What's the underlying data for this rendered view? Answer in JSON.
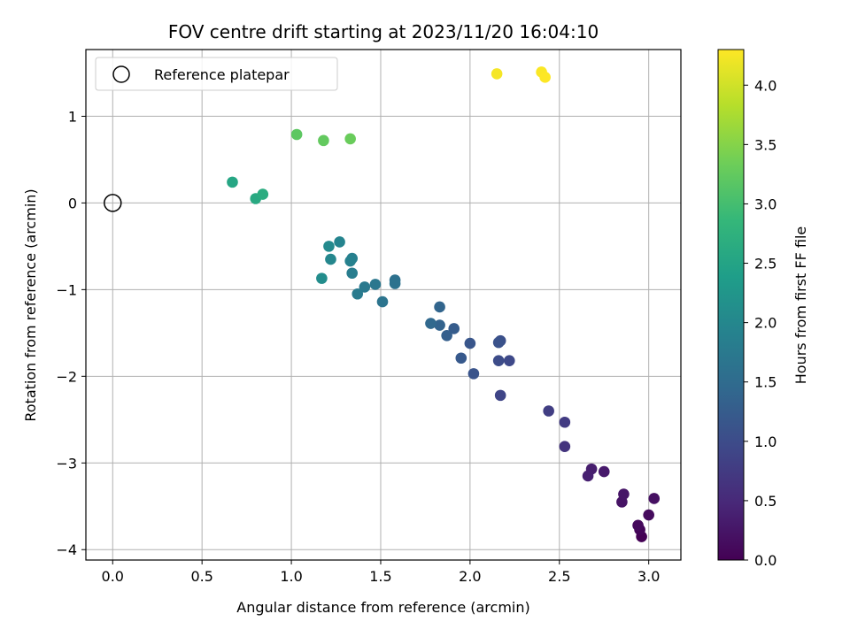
{
  "chart_data": {
    "type": "scatter",
    "title": "FOV centre drift starting at 2023/11/20 16:04:10",
    "xlabel": "Angular distance from reference (arcmin)",
    "ylabel": "Rotation from reference (arcmin)",
    "xlim": [
      -0.15,
      3.18
    ],
    "ylim": [
      -4.12,
      1.77
    ],
    "xticks": [
      0.0,
      0.5,
      1.0,
      1.5,
      2.0,
      2.5,
      3.0
    ],
    "xtick_labels": [
      "0.0",
      "0.5",
      "1.0",
      "1.5",
      "2.0",
      "2.5",
      "3.0"
    ],
    "yticks": [
      -4,
      -3,
      -2,
      -1,
      0,
      1
    ],
    "ytick_labels": [
      "−4",
      "−3",
      "−2",
      "−1",
      "0",
      "1"
    ],
    "grid": true,
    "legend": {
      "location": "upper-left",
      "entries": [
        "Reference platepar"
      ]
    },
    "reference_point": {
      "x": 0.0,
      "y": 0.0
    },
    "colorbar": {
      "label": "Hours from first FF file",
      "range": [
        0.0,
        4.3
      ],
      "ticks": [
        0.0,
        0.5,
        1.0,
        1.5,
        2.0,
        2.5,
        3.0,
        3.5,
        4.0
      ],
      "tick_labels": [
        "0.0",
        "0.5",
        "1.0",
        "1.5",
        "2.0",
        "2.5",
        "3.0",
        "3.5",
        "4.0"
      ],
      "colormap": [
        "#440154",
        "#482878",
        "#3e4989",
        "#31688e",
        "#26828e",
        "#1f9e89",
        "#35b779",
        "#6ece58",
        "#b5de2b",
        "#fde725"
      ]
    },
    "points": [
      {
        "x": 2.96,
        "y": -3.85,
        "c": 0.0
      },
      {
        "x": 2.95,
        "y": -3.77,
        "c": 0.05
      },
      {
        "x": 2.94,
        "y": -3.72,
        "c": 0.1
      },
      {
        "x": 3.0,
        "y": -3.6,
        "c": 0.12
      },
      {
        "x": 3.03,
        "y": -3.41,
        "c": 0.18
      },
      {
        "x": 2.85,
        "y": -3.45,
        "c": 0.22
      },
      {
        "x": 2.86,
        "y": -3.36,
        "c": 0.25
      },
      {
        "x": 2.75,
        "y": -3.1,
        "c": 0.3
      },
      {
        "x": 2.68,
        "y": -3.07,
        "c": 0.35
      },
      {
        "x": 2.66,
        "y": -3.15,
        "c": 0.38
      },
      {
        "x": 2.53,
        "y": -2.81,
        "c": 0.65
      },
      {
        "x": 2.53,
        "y": -2.53,
        "c": 0.75
      },
      {
        "x": 2.44,
        "y": -2.4,
        "c": 0.8
      },
      {
        "x": 2.17,
        "y": -2.22,
        "c": 0.9
      },
      {
        "x": 2.22,
        "y": -1.82,
        "c": 0.95
      },
      {
        "x": 2.16,
        "y": -1.82,
        "c": 1.0
      },
      {
        "x": 2.17,
        "y": -1.59,
        "c": 1.05
      },
      {
        "x": 2.16,
        "y": -1.61,
        "c": 1.1
      },
      {
        "x": 2.02,
        "y": -1.97,
        "c": 1.12
      },
      {
        "x": 2.0,
        "y": -1.62,
        "c": 1.15
      },
      {
        "x": 1.95,
        "y": -1.79,
        "c": 1.2
      },
      {
        "x": 1.91,
        "y": -1.45,
        "c": 1.25
      },
      {
        "x": 1.87,
        "y": -1.53,
        "c": 1.3
      },
      {
        "x": 1.83,
        "y": -1.41,
        "c": 1.35
      },
      {
        "x": 1.83,
        "y": -1.2,
        "c": 1.38
      },
      {
        "x": 1.78,
        "y": -1.39,
        "c": 1.45
      },
      {
        "x": 1.58,
        "y": -0.89,
        "c": 1.6
      },
      {
        "x": 1.58,
        "y": -0.93,
        "c": 1.62
      },
      {
        "x": 1.51,
        "y": -1.14,
        "c": 1.65
      },
      {
        "x": 1.47,
        "y": -0.94,
        "c": 1.7
      },
      {
        "x": 1.41,
        "y": -0.97,
        "c": 1.75
      },
      {
        "x": 1.37,
        "y": -1.05,
        "c": 1.78
      },
      {
        "x": 1.34,
        "y": -0.81,
        "c": 1.82
      },
      {
        "x": 1.34,
        "y": -0.64,
        "c": 1.85
      },
      {
        "x": 1.33,
        "y": -0.67,
        "c": 1.9
      },
      {
        "x": 1.27,
        "y": -0.45,
        "c": 1.95
      },
      {
        "x": 1.22,
        "y": -0.65,
        "c": 2.0
      },
      {
        "x": 1.21,
        "y": -0.5,
        "c": 2.05
      },
      {
        "x": 1.17,
        "y": -0.87,
        "c": 2.1
      },
      {
        "x": 0.67,
        "y": 0.24,
        "c": 2.55
      },
      {
        "x": 0.8,
        "y": 0.05,
        "c": 2.6
      },
      {
        "x": 0.84,
        "y": 0.1,
        "c": 2.65
      },
      {
        "x": 1.03,
        "y": 0.79,
        "c": 3.2
      },
      {
        "x": 1.18,
        "y": 0.72,
        "c": 3.25
      },
      {
        "x": 1.33,
        "y": 0.74,
        "c": 3.3
      },
      {
        "x": 2.15,
        "y": 1.49,
        "c": 4.25
      },
      {
        "x": 2.4,
        "y": 1.51,
        "c": 4.28
      },
      {
        "x": 2.42,
        "y": 1.45,
        "c": 4.3
      }
    ]
  }
}
